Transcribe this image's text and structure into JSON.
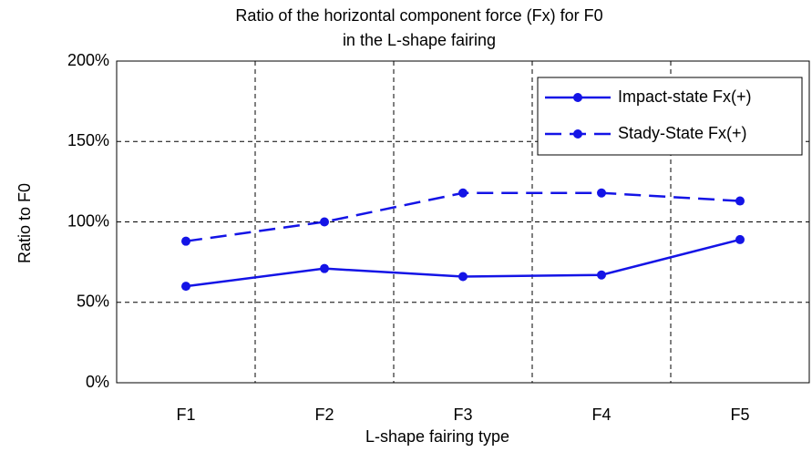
{
  "chart_data": {
    "type": "line",
    "title": [
      "Ratio of the horizontal component force (Fx)  for F0",
      "in the L-shape fairing"
    ],
    "xlabel": "L-shape fairing type",
    "ylabel": "Ratio to F0",
    "categories": [
      "F1",
      "F2",
      "F3",
      "F4",
      "F5"
    ],
    "series": [
      {
        "name": "Impact-state Fx(+)",
        "color": "#1414e6",
        "dash": false,
        "values": [
          60,
          71,
          66,
          67,
          89
        ]
      },
      {
        "name": "Stady-State Fx(+)",
        "color": "#1414e6",
        "dash": true,
        "values": [
          88,
          100,
          118,
          118,
          113
        ]
      }
    ],
    "ylim": [
      0,
      200
    ],
    "yticks": [
      {
        "value": 0,
        "label": "0%"
      },
      {
        "value": 50,
        "label": "50%"
      },
      {
        "value": 100,
        "label": "100%"
      },
      {
        "value": 150,
        "label": "150%"
      },
      {
        "value": 200,
        "label": "200%"
      }
    ],
    "grid": true,
    "legend": "upper right"
  }
}
